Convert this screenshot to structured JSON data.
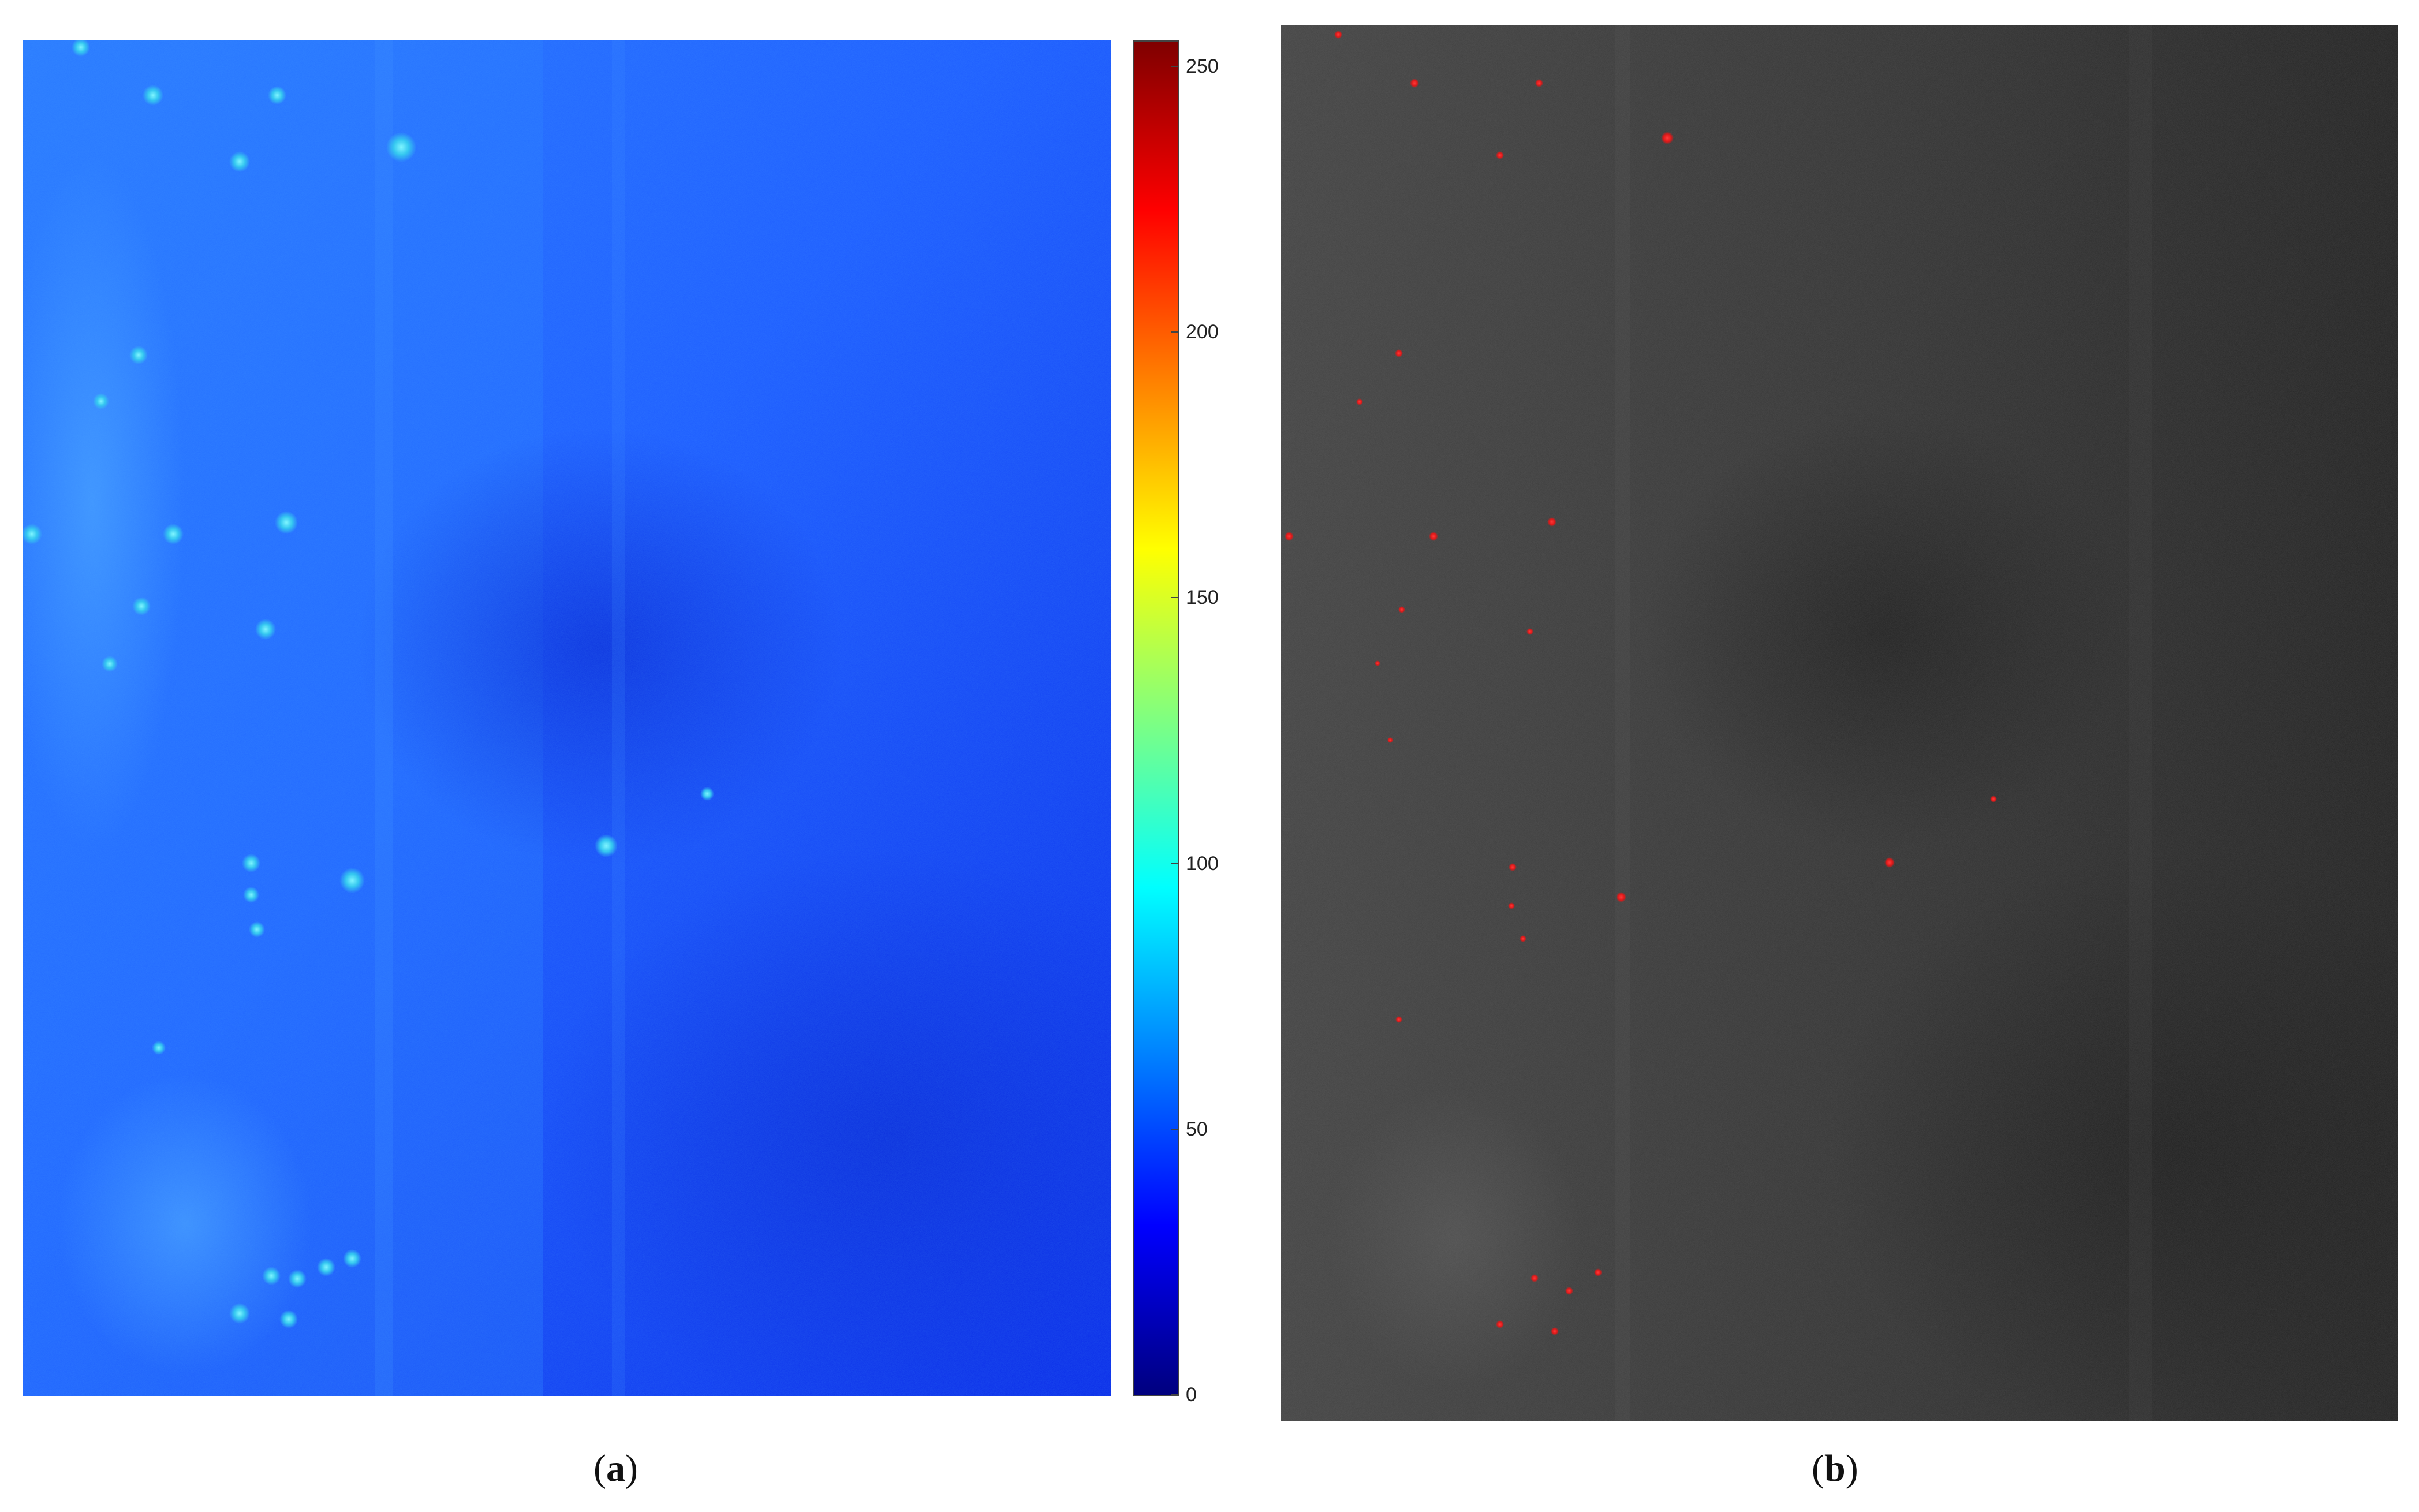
{
  "figure": {
    "panel_a": {
      "caption": {
        "open": "(",
        "letter": "a",
        "close": ")"
      },
      "colorbar": {
        "colormap": "jet",
        "range": [
          0,
          255
        ],
        "ticks": [
          "0",
          "50",
          "100",
          "150",
          "200",
          "250"
        ],
        "tick_values": [
          0,
          50,
          100,
          150,
          200,
          250
        ]
      },
      "palette": {
        "background": "#1f5bff",
        "dark": "#0a2ee8",
        "spot": "#39d0e6"
      }
    },
    "panel_b": {
      "caption": {
        "open": "(",
        "letter": "b",
        "close": ")"
      },
      "palette": {
        "background": "#3a3a3a",
        "dark": "#262626",
        "marker": "#ff2a2a"
      }
    }
  }
}
